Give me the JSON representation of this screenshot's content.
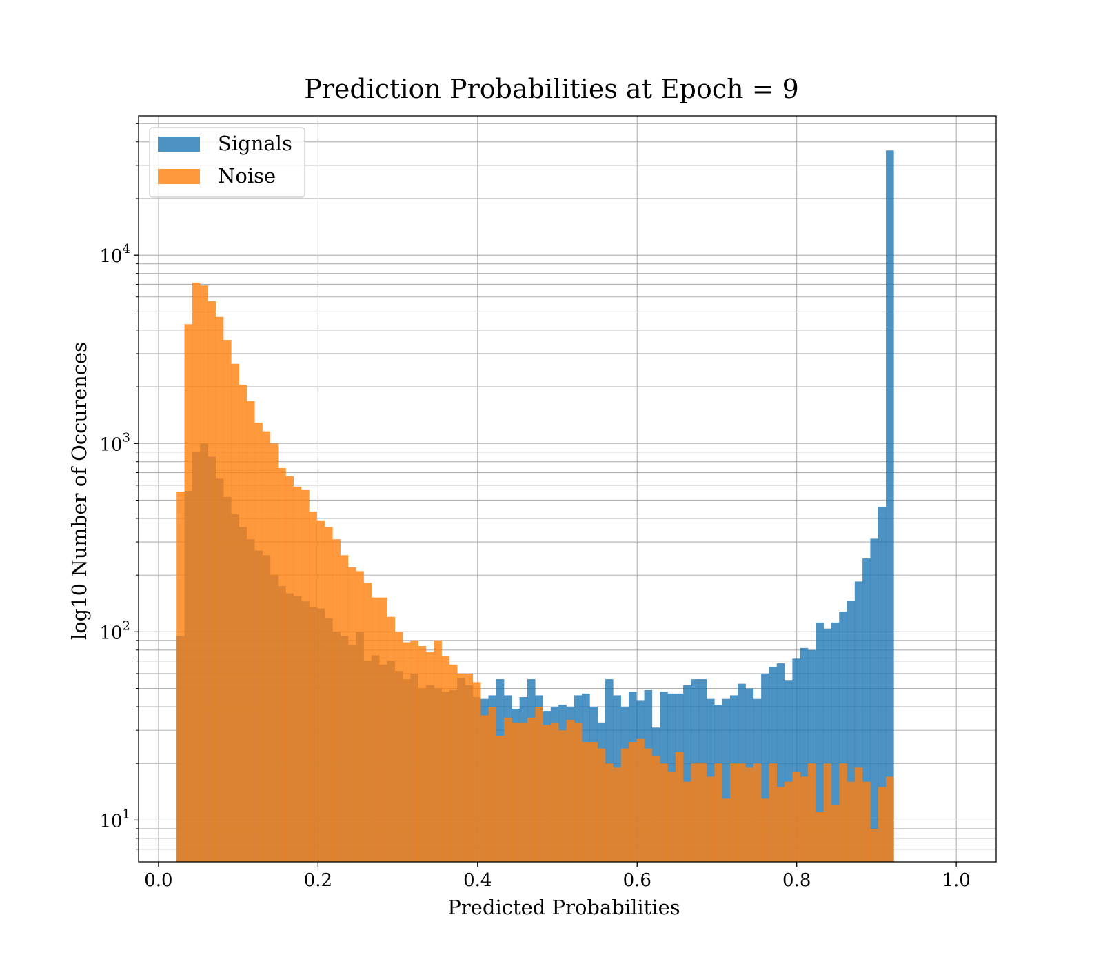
{
  "chart_data": {
    "type": "bar",
    "title": "Prediction Probabilities at Epoch = 9",
    "xlabel": "Predicted Probabilities",
    "ylabel": "log10 Number of Occurences",
    "x_scale": "linear",
    "y_scale": "log",
    "xlim": [
      -0.025,
      1.05
    ],
    "ylim": [
      6,
      55000
    ],
    "grid": true,
    "legend_placement": "top-left",
    "x_ticks": [
      {
        "value": 0.0,
        "label": "0.0"
      },
      {
        "value": 0.2,
        "label": "0.2"
      },
      {
        "value": 0.4,
        "label": "0.4"
      },
      {
        "value": 0.6,
        "label": "0.6"
      },
      {
        "value": 0.8,
        "label": "0.8"
      },
      {
        "value": 1.0,
        "label": "1.0"
      }
    ],
    "y_ticks": [
      {
        "value": 10,
        "base": "10",
        "exp": "1"
      },
      {
        "value": 100,
        "base": "10",
        "exp": "2"
      },
      {
        "value": 1000,
        "base": "10",
        "exp": "3"
      },
      {
        "value": 10000,
        "base": "10",
        "exp": "4"
      }
    ],
    "bin_start": 0.0227,
    "bin_width": 0.00977,
    "series": [
      {
        "name": "Signals",
        "color": "#1f77b4",
        "opacity": 0.8,
        "values": [
          95,
          560,
          900,
          1000,
          850,
          650,
          520,
          420,
          360,
          310,
          270,
          255,
          200,
          175,
          160,
          155,
          145,
          135,
          133,
          118,
          100,
          95,
          85,
          100,
          70,
          75,
          67,
          70,
          62,
          56,
          60,
          50,
          52,
          50,
          48,
          49,
          57,
          52,
          45,
          44,
          46,
          56,
          46,
          39,
          45,
          56,
          46,
          38,
          40,
          41,
          40,
          46,
          47,
          40,
          33,
          56,
          46,
          40,
          48,
          43,
          49,
          31,
          48,
          47,
          47,
          52,
          56,
          56,
          44,
          41,
          44,
          46,
          53,
          50,
          44,
          60,
          65,
          68,
          55,
          72,
          82,
          80,
          112,
          104,
          112,
          128,
          146,
          185,
          245,
          312,
          460,
          36000
        ]
      },
      {
        "name": "Noise",
        "color": "#ff7f0e",
        "opacity": 0.8,
        "values": [
          555,
          4300,
          7150,
          6900,
          5700,
          4700,
          3550,
          2650,
          2050,
          1680,
          1290,
          1160,
          1000,
          740,
          670,
          590,
          570,
          435,
          390,
          360,
          310,
          255,
          220,
          210,
          182,
          152,
          152,
          120,
          100,
          88,
          90,
          84,
          78,
          90,
          74,
          67,
          60,
          60,
          54,
          36,
          40,
          28,
          35,
          33,
          33,
          35,
          40,
          32,
          33,
          30,
          34,
          33,
          26,
          26,
          24,
          20,
          19,
          24,
          26,
          27,
          24,
          22,
          20,
          18,
          23,
          16,
          20,
          20,
          17,
          20,
          13,
          20,
          20,
          19,
          20,
          13,
          20,
          15,
          16,
          18,
          17,
          20,
          11,
          20,
          12,
          20,
          16,
          19,
          16,
          9,
          15,
          17
        ]
      }
    ]
  }
}
